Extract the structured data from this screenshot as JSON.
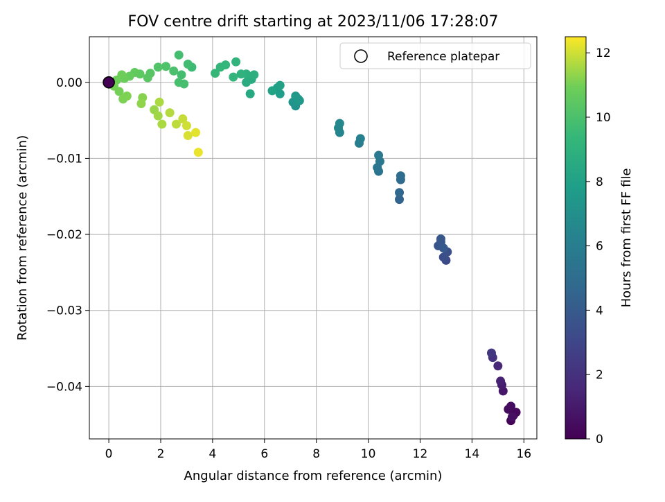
{
  "chart_data": {
    "type": "scatter",
    "title": "FOV centre drift starting at 2023/11/06 17:28:07",
    "xlabel": "Angular distance from reference (arcmin)",
    "ylabel": "Rotation from reference (arcmin)",
    "xlim": [
      -0.75,
      16.5
    ],
    "ylim": [
      -0.0469,
      0.006
    ],
    "xticks": [
      0,
      2,
      4,
      6,
      8,
      10,
      12,
      14,
      16
    ],
    "xtick_labels": [
      "0",
      "2",
      "4",
      "6",
      "8",
      "10",
      "12",
      "14",
      "16"
    ],
    "yticks": [
      0.0,
      -0.01,
      -0.02,
      -0.03,
      -0.04
    ],
    "ytick_labels": [
      "0.00",
      "−0.01",
      "−0.02",
      "−0.03",
      "−0.04"
    ],
    "grid": true,
    "legend": {
      "entries": [
        "Reference platepar"
      ],
      "placement": "top-right"
    },
    "colorbar": {
      "label": "Hours from first FF file",
      "colormap": "viridis",
      "range": [
        0,
        12.5
      ],
      "ticks": [
        0,
        2,
        4,
        6,
        8,
        10,
        12
      ],
      "tick_labels": [
        "0",
        "2",
        "4",
        "6",
        "8",
        "10",
        "12"
      ]
    },
    "reference_point": {
      "x": 0,
      "y": 0.0
    },
    "series": [
      {
        "marker": "filled-circle",
        "color_by": "hours",
        "points": [
          {
            "x": 15.5,
            "y": -0.0445,
            "h": 0.1
          },
          {
            "x": 15.6,
            "y": -0.0438,
            "h": 0.2
          },
          {
            "x": 15.7,
            "y": -0.0434,
            "h": 0.3
          },
          {
            "x": 15.4,
            "y": -0.043,
            "h": 0.4
          },
          {
            "x": 15.5,
            "y": -0.0426,
            "h": 0.5
          },
          {
            "x": 15.55,
            "y": -0.044,
            "h": 0.6
          },
          {
            "x": 15.2,
            "y": -0.0406,
            "h": 0.9
          },
          {
            "x": 15.15,
            "y": -0.0398,
            "h": 1.1
          },
          {
            "x": 15.1,
            "y": -0.0393,
            "h": 1.3
          },
          {
            "x": 15.0,
            "y": -0.0373,
            "h": 1.6
          },
          {
            "x": 14.8,
            "y": -0.0362,
            "h": 2.0
          },
          {
            "x": 14.75,
            "y": -0.0356,
            "h": 2.3
          },
          {
            "x": 13.0,
            "y": -0.0234,
            "h": 3.2
          },
          {
            "x": 12.9,
            "y": -0.023,
            "h": 3.4
          },
          {
            "x": 13.05,
            "y": -0.0223,
            "h": 3.5
          },
          {
            "x": 12.7,
            "y": -0.0215,
            "h": 3.7
          },
          {
            "x": 12.8,
            "y": -0.021,
            "h": 3.8
          },
          {
            "x": 12.8,
            "y": -0.0206,
            "h": 3.9
          },
          {
            "x": 12.9,
            "y": -0.0218,
            "h": 4.0
          },
          {
            "x": 11.2,
            "y": -0.0154,
            "h": 4.5
          },
          {
            "x": 11.2,
            "y": -0.0145,
            "h": 4.7
          },
          {
            "x": 11.25,
            "y": -0.0128,
            "h": 4.9
          },
          {
            "x": 11.25,
            "y": -0.0123,
            "h": 5.0
          },
          {
            "x": 10.4,
            "y": -0.0117,
            "h": 5.4
          },
          {
            "x": 10.35,
            "y": -0.0112,
            "h": 5.5
          },
          {
            "x": 10.45,
            "y": -0.0104,
            "h": 5.6
          },
          {
            "x": 10.4,
            "y": -0.0096,
            "h": 5.7
          },
          {
            "x": 9.65,
            "y": -0.008,
            "h": 6.0
          },
          {
            "x": 9.7,
            "y": -0.0074,
            "h": 6.1
          },
          {
            "x": 8.9,
            "y": -0.0066,
            "h": 6.4
          },
          {
            "x": 8.85,
            "y": -0.006,
            "h": 6.5
          },
          {
            "x": 8.9,
            "y": -0.0054,
            "h": 6.6
          },
          {
            "x": 7.2,
            "y": -0.0031,
            "h": 7.2
          },
          {
            "x": 7.1,
            "y": -0.0026,
            "h": 7.3
          },
          {
            "x": 7.3,
            "y": -0.0022,
            "h": 7.4
          },
          {
            "x": 7.2,
            "y": -0.0018,
            "h": 7.5
          },
          {
            "x": 7.35,
            "y": -0.0024,
            "h": 7.5
          },
          {
            "x": 6.6,
            "y": -0.0015,
            "h": 7.8
          },
          {
            "x": 6.5,
            "y": -0.0007,
            "h": 7.9
          },
          {
            "x": 6.6,
            "y": -0.0004,
            "h": 8.0
          },
          {
            "x": 6.3,
            "y": -0.0011,
            "h": 8.1
          },
          {
            "x": 5.45,
            "y": -0.0015,
            "h": 8.5
          },
          {
            "x": 5.3,
            "y": 0.0,
            "h": 8.6
          },
          {
            "x": 5.5,
            "y": 0.0004,
            "h": 8.7
          },
          {
            "x": 5.6,
            "y": 0.001,
            "h": 8.8
          },
          {
            "x": 5.3,
            "y": 0.0011,
            "h": 8.9
          },
          {
            "x": 5.1,
            "y": 0.0011,
            "h": 9.0
          },
          {
            "x": 4.9,
            "y": 0.0027,
            "h": 9.1
          },
          {
            "x": 4.8,
            "y": 0.0007,
            "h": 9.2
          },
          {
            "x": 4.5,
            "y": 0.0023,
            "h": 9.3
          },
          {
            "x": 4.3,
            "y": 0.002,
            "h": 9.3
          },
          {
            "x": 4.1,
            "y": 0.0012,
            "h": 9.4
          },
          {
            "x": 3.2,
            "y": 0.002,
            "h": 9.6
          },
          {
            "x": 3.05,
            "y": 0.0024,
            "h": 9.7
          },
          {
            "x": 2.7,
            "y": 0.0036,
            "h": 9.8
          },
          {
            "x": 2.8,
            "y": 0.001,
            "h": 9.8
          },
          {
            "x": 2.7,
            "y": 0.0,
            "h": 9.9
          },
          {
            "x": 2.9,
            "y": -0.0002,
            "h": 9.9
          },
          {
            "x": 2.5,
            "y": 0.0015,
            "h": 10.0
          },
          {
            "x": 2.2,
            "y": 0.0021,
            "h": 10.1
          },
          {
            "x": 1.9,
            "y": 0.002,
            "h": 10.2
          },
          {
            "x": 1.6,
            "y": 0.0012,
            "h": 10.3
          },
          {
            "x": 1.5,
            "y": 0.0006,
            "h": 10.4
          },
          {
            "x": 1.2,
            "y": 0.0011,
            "h": 10.5
          },
          {
            "x": 1.0,
            "y": 0.0013,
            "h": 10.6
          },
          {
            "x": 0.8,
            "y": 0.0008,
            "h": 10.7
          },
          {
            "x": 0.6,
            "y": 0.0005,
            "h": 10.8
          },
          {
            "x": 0.5,
            "y": 0.001,
            "h": 10.9
          },
          {
            "x": 0.3,
            "y": 0.0003,
            "h": 10.9
          },
          {
            "x": 0.2,
            "y": -0.0005,
            "h": 11.0
          },
          {
            "x": 0.4,
            "y": -0.0012,
            "h": 11.0
          },
          {
            "x": 0.55,
            "y": -0.0022,
            "h": 11.1
          },
          {
            "x": 0.7,
            "y": -0.0018,
            "h": 11.1
          },
          {
            "x": 1.3,
            "y": -0.002,
            "h": 11.2
          },
          {
            "x": 1.25,
            "y": -0.0028,
            "h": 11.3
          },
          {
            "x": 1.75,
            "y": -0.0036,
            "h": 11.4
          },
          {
            "x": 1.9,
            "y": -0.0044,
            "h": 11.5
          },
          {
            "x": 2.05,
            "y": -0.0055,
            "h": 11.6
          },
          {
            "x": 1.95,
            "y": -0.0026,
            "h": 11.6
          },
          {
            "x": 2.35,
            "y": -0.004,
            "h": 11.7
          },
          {
            "x": 2.6,
            "y": -0.0055,
            "h": 11.8
          },
          {
            "x": 2.85,
            "y": -0.0048,
            "h": 11.9
          },
          {
            "x": 3.0,
            "y": -0.0057,
            "h": 12.0
          },
          {
            "x": 3.05,
            "y": -0.007,
            "h": 12.1
          },
          {
            "x": 3.35,
            "y": -0.0066,
            "h": 12.2
          },
          {
            "x": 3.45,
            "y": -0.0092,
            "h": 12.3
          }
        ]
      }
    ]
  }
}
